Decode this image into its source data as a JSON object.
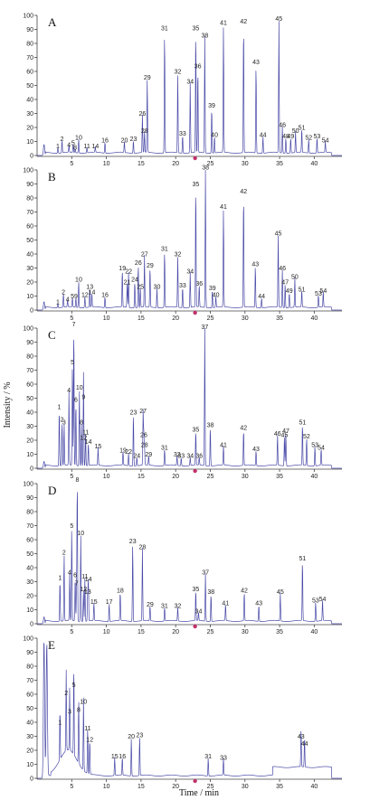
{
  "chart_data": {
    "type": "line",
    "xlabel": "Time / min",
    "ylabel": "Intensity / %",
    "xlim": [
      0,
      44
    ],
    "ylim": [
      0,
      100
    ],
    "x_ticks": [
      5,
      10,
      15,
      20,
      25,
      30,
      35,
      40
    ],
    "y_ticks": [
      0,
      10,
      20,
      30,
      40,
      50,
      60,
      70,
      80,
      90,
      100
    ],
    "marker": {
      "x": 22.8,
      "color": "#c0306a"
    },
    "trace_color": "#4a4aa8",
    "panels": [
      {
        "letter": "A",
        "initial_spike": 8,
        "peaks": [
          {
            "l": "1",
            "x": 3.0,
            "y": 4
          },
          {
            "l": "2",
            "x": 3.6,
            "y": 9
          },
          {
            "l": "4",
            "x": 4.6,
            "y": 5
          },
          {
            "l": "5",
            "x": 5.2,
            "y": 6
          },
          {
            "l": "8",
            "x": 5.5,
            "y": 3
          },
          {
            "l": "10",
            "x": 6.0,
            "y": 10
          },
          {
            "l": "11",
            "x": 7.2,
            "y": 4
          },
          {
            "l": "14",
            "x": 8.4,
            "y": 4
          },
          {
            "l": "16",
            "x": 9.8,
            "y": 8
          },
          {
            "l": "20",
            "x": 12.6,
            "y": 8
          },
          {
            "l": "23",
            "x": 13.9,
            "y": 9
          },
          {
            "l": "26",
            "x": 15.2,
            "y": 27
          },
          {
            "l": "28",
            "x": 15.5,
            "y": 15
          },
          {
            "l": "29",
            "x": 15.9,
            "y": 53
          },
          {
            "l": "31",
            "x": 18.4,
            "y": 88
          },
          {
            "l": "32",
            "x": 20.3,
            "y": 57
          },
          {
            "l": "33",
            "x": 21.0,
            "y": 13
          },
          {
            "l": "34",
            "x": 22.1,
            "y": 50
          },
          {
            "l": "35",
            "x": 22.9,
            "y": 88
          },
          {
            "l": "36",
            "x": 23.2,
            "y": 61
          },
          {
            "l": "38",
            "x": 24.2,
            "y": 83
          },
          {
            "l": "39",
            "x": 25.2,
            "y": 33
          },
          {
            "l": "40",
            "x": 25.6,
            "y": 12
          },
          {
            "l": "41",
            "x": 26.9,
            "y": 92
          },
          {
            "l": "42",
            "x": 29.8,
            "y": 93
          },
          {
            "l": "43",
            "x": 31.6,
            "y": 64
          },
          {
            "l": "44",
            "x": 32.6,
            "y": 12
          },
          {
            "l": "45",
            "x": 34.9,
            "y": 95
          },
          {
            "l": "46",
            "x": 35.4,
            "y": 19
          },
          {
            "l": "48",
            "x": 35.9,
            "y": 11
          },
          {
            "l": "49",
            "x": 36.6,
            "y": 11
          },
          {
            "l": "50",
            "x": 37.3,
            "y": 15
          },
          {
            "l": "51",
            "x": 38.2,
            "y": 17
          },
          {
            "l": "52",
            "x": 39.2,
            "y": 10
          },
          {
            "l": "53",
            "x": 40.4,
            "y": 11
          },
          {
            "l": "54",
            "x": 41.6,
            "y": 8
          }
        ]
      },
      {
        "letter": "B",
        "initial_spike": 6,
        "peaks": [
          {
            "l": "1",
            "x": 3.0,
            "y": 3
          },
          {
            "l": "2",
            "x": 3.8,
            "y": 10
          },
          {
            "l": "4",
            "x": 4.4,
            "y": 5
          },
          {
            "l": "5",
            "x": 5.1,
            "y": 7
          },
          {
            "l": "9",
            "x": 5.6,
            "y": 7
          },
          {
            "l": "10",
            "x": 6.0,
            "y": 19
          },
          {
            "l": "12",
            "x": 6.9,
            "y": 8
          },
          {
            "l": "13",
            "x": 7.6,
            "y": 14
          },
          {
            "l": "14",
            "x": 7.9,
            "y": 10
          },
          {
            "l": "16",
            "x": 9.8,
            "y": 8
          },
          {
            "l": "19",
            "x": 12.3,
            "y": 27
          },
          {
            "l": "21",
            "x": 13.0,
            "y": 17
          },
          {
            "l": "22",
            "x": 13.2,
            "y": 25
          },
          {
            "l": "24",
            "x": 14.1,
            "y": 19
          },
          {
            "l": "25",
            "x": 14.9,
            "y": 14
          },
          {
            "l": "26",
            "x": 14.6,
            "y": 31
          },
          {
            "l": "27",
            "x": 15.5,
            "y": 37
          },
          {
            "l": "29",
            "x": 16.3,
            "y": 29
          },
          {
            "l": "30",
            "x": 17.3,
            "y": 14
          },
          {
            "l": "31",
            "x": 18.4,
            "y": 41
          },
          {
            "l": "32",
            "x": 20.3,
            "y": 37
          },
          {
            "l": "33",
            "x": 21.0,
            "y": 15
          },
          {
            "l": "34",
            "x": 22.1,
            "y": 25
          },
          {
            "l": "35",
            "x": 22.9,
            "y": 87
          },
          {
            "l": "36",
            "x": 23.4,
            "y": 16
          },
          {
            "l": "38",
            "x": 24.3,
            "y": 99
          },
          {
            "l": "39",
            "x": 25.3,
            "y": 13
          },
          {
            "l": "40",
            "x": 25.8,
            "y": 8
          },
          {
            "l": "41",
            "x": 26.9,
            "y": 71
          },
          {
            "l": "42",
            "x": 29.8,
            "y": 82
          },
          {
            "l": "43",
            "x": 31.5,
            "y": 30
          },
          {
            "l": "44",
            "x": 32.4,
            "y": 7
          },
          {
            "l": "45",
            "x": 34.8,
            "y": 52
          },
          {
            "l": "46",
            "x": 35.4,
            "y": 27
          },
          {
            "l": "47",
            "x": 35.8,
            "y": 17
          },
          {
            "l": "49",
            "x": 36.4,
            "y": 11
          },
          {
            "l": "50",
            "x": 37.2,
            "y": 21
          },
          {
            "l": "51",
            "x": 38.2,
            "y": 12
          },
          {
            "l": "53",
            "x": 40.6,
            "y": 9
          },
          {
            "l": "54",
            "x": 41.3,
            "y": 11
          }
        ]
      },
      {
        "letter": "C",
        "initial_spike": 5,
        "peaks": [
          {
            "l": "1",
            "x": 3.2,
            "y": 41
          },
          {
            "l": "2",
            "x": 3.6,
            "y": 32
          },
          {
            "l": "3",
            "x": 3.9,
            "y": 30
          },
          {
            "l": "4",
            "x": 4.6,
            "y": 53
          },
          {
            "l": "5",
            "x": 5.1,
            "y": 73
          },
          {
            "l": "6",
            "x": 5.6,
            "y": 46
          },
          {
            "l": "7",
            "x": 5.3,
            "y": 100
          },
          {
            "l": "8",
            "x": 6.4,
            "y": 30
          },
          {
            "l": "9",
            "x": 6.7,
            "y": 48
          },
          {
            "l": "10",
            "x": 6.1,
            "y": 55
          },
          {
            "l": "11",
            "x": 7.0,
            "y": 23
          },
          {
            "l": "12",
            "x": 6.7,
            "y": 19
          },
          {
            "l": "14",
            "x": 7.4,
            "y": 16
          },
          {
            "l": "15",
            "x": 8.8,
            "y": 13
          },
          {
            "l": "19",
            "x": 12.4,
            "y": 10
          },
          {
            "l": "22",
            "x": 13.2,
            "y": 9
          },
          {
            "l": "23",
            "x": 13.9,
            "y": 37
          },
          {
            "l": "24",
            "x": 14.4,
            "y": 6
          },
          {
            "l": "26",
            "x": 15.4,
            "y": 21
          },
          {
            "l": "27",
            "x": 15.3,
            "y": 38
          },
          {
            "l": "28",
            "x": 15.5,
            "y": 14
          },
          {
            "l": "29",
            "x": 16.1,
            "y": 7
          },
          {
            "l": "31",
            "x": 18.4,
            "y": 12
          },
          {
            "l": "32",
            "x": 20.2,
            "y": 7
          },
          {
            "l": "33",
            "x": 20.8,
            "y": 6
          },
          {
            "l": "34",
            "x": 22.1,
            "y": 6
          },
          {
            "l": "35",
            "x": 22.9,
            "y": 25
          },
          {
            "l": "36",
            "x": 23.4,
            "y": 6
          },
          {
            "l": "37",
            "x": 24.2,
            "y": 98
          },
          {
            "l": "38",
            "x": 25.0,
            "y": 28
          },
          {
            "l": "41",
            "x": 26.9,
            "y": 14
          },
          {
            "l": "42",
            "x": 29.8,
            "y": 26
          },
          {
            "l": "43",
            "x": 31.6,
            "y": 11
          },
          {
            "l": "45",
            "x": 35.7,
            "y": 21
          },
          {
            "l": "46",
            "x": 34.7,
            "y": 22
          },
          {
            "l": "47",
            "x": 35.9,
            "y": 24
          },
          {
            "l": "51",
            "x": 38.3,
            "y": 30
          },
          {
            "l": "52",
            "x": 38.9,
            "y": 20
          },
          {
            "l": "53",
            "x": 40.1,
            "y": 14
          },
          {
            "l": "54",
            "x": 41.0,
            "y": 12
          }
        ]
      },
      {
        "letter": "D",
        "initial_spike": 5,
        "peaks": [
          {
            "l": "1",
            "x": 3.3,
            "y": 30
          },
          {
            "l": "2",
            "x": 3.9,
            "y": 48
          },
          {
            "l": "4",
            "x": 4.7,
            "y": 34
          },
          {
            "l": "5",
            "x": 5.0,
            "y": 67
          },
          {
            "l": "6",
            "x": 5.5,
            "y": 32
          },
          {
            "l": "7",
            "x": 5.7,
            "y": 26
          },
          {
            "l": "8",
            "x": 5.8,
            "y": 100
          },
          {
            "l": "10",
            "x": 6.3,
            "y": 62
          },
          {
            "l": "11",
            "x": 6.9,
            "y": 31
          },
          {
            "l": "12",
            "x": 6.7,
            "y": 22
          },
          {
            "l": "13",
            "x": 7.3,
            "y": 20
          },
          {
            "l": "14",
            "x": 7.4,
            "y": 29
          },
          {
            "l": "15",
            "x": 8.2,
            "y": 13
          },
          {
            "l": "17",
            "x": 10.4,
            "y": 13
          },
          {
            "l": "18",
            "x": 12.0,
            "y": 21
          },
          {
            "l": "23",
            "x": 13.8,
            "y": 56
          },
          {
            "l": "28",
            "x": 15.2,
            "y": 52
          },
          {
            "l": "29",
            "x": 16.3,
            "y": 11
          },
          {
            "l": "31",
            "x": 18.4,
            "y": 10
          },
          {
            "l": "32",
            "x": 20.3,
            "y": 10
          },
          {
            "l": "34",
            "x": 23.3,
            "y": 6
          },
          {
            "l": "35",
            "x": 22.9,
            "y": 22
          },
          {
            "l": "37",
            "x": 24.3,
            "y": 34
          },
          {
            "l": "38",
            "x": 25.1,
            "y": 20
          },
          {
            "l": "41",
            "x": 27.2,
            "y": 12
          },
          {
            "l": "42",
            "x": 29.9,
            "y": 21
          },
          {
            "l": "43",
            "x": 32.0,
            "y": 12
          },
          {
            "l": "45",
            "x": 35.1,
            "y": 20
          },
          {
            "l": "51",
            "x": 38.3,
            "y": 44
          },
          {
            "l": "53",
            "x": 40.2,
            "y": 14
          },
          {
            "l": "54",
            "x": 41.2,
            "y": 15
          }
        ]
      },
      {
        "letter": "E",
        "initial_spike": 100,
        "peaks": [
          {
            "l": "1",
            "x": 3.3,
            "y": 37
          },
          {
            "l": "2",
            "x": 4.2,
            "y": 58
          },
          {
            "l": "3",
            "x": 4.7,
            "y": 45
          },
          {
            "l": "5",
            "x": 5.3,
            "y": 64
          },
          {
            "l": "8",
            "x": 6.0,
            "y": 46
          },
          {
            "l": "10",
            "x": 6.7,
            "y": 52
          },
          {
            "l": "11",
            "x": 7.3,
            "y": 33
          },
          {
            "l": "12",
            "x": 7.6,
            "y": 25
          },
          {
            "l": "15",
            "x": 11.2,
            "y": 13
          },
          {
            "l": "16",
            "x": 12.3,
            "y": 13
          },
          {
            "l": "20",
            "x": 13.6,
            "y": 27
          },
          {
            "l": "23",
            "x": 14.8,
            "y": 28
          },
          {
            "l": "31",
            "x": 24.7,
            "y": 13
          },
          {
            "l": "33",
            "x": 26.9,
            "y": 12
          },
          {
            "l": "43",
            "x": 38.1,
            "y": 27
          },
          {
            "l": "44",
            "x": 38.6,
            "y": 22
          }
        ]
      }
    ]
  }
}
